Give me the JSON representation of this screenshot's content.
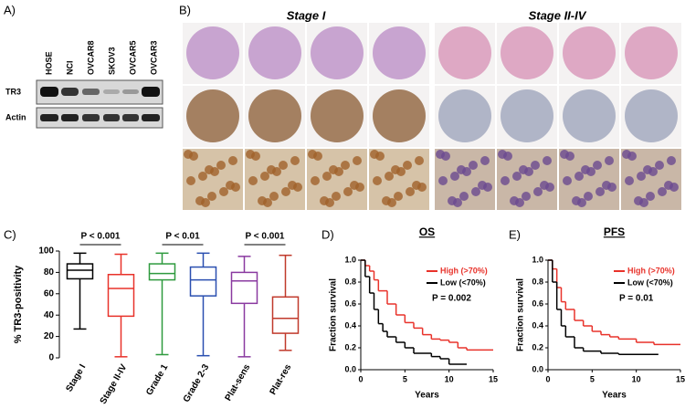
{
  "panels": {
    "a": {
      "label": "A)",
      "lanes": [
        "HOSE",
        "NCI",
        "OVCAR8",
        "SKOV3",
        "OVCAR5",
        "OVCAR3"
      ],
      "rows": [
        "TR3",
        "Actin"
      ]
    },
    "b": {
      "label": "B)",
      "groups": [
        "Stage I",
        "Stage II-IV"
      ]
    }
  },
  "chart_data": [
    {
      "type": "box",
      "label": "C)",
      "ylabel": "% TR3-positivity",
      "categories": [
        "Stage I",
        "Stage II-IV",
        "Grade 1",
        "Grade 2-3",
        "Plat-sens",
        "Plat-res"
      ],
      "colors": [
        "#000000",
        "#e8322a",
        "#2e9a3e",
        "#2a4fb0",
        "#8a3aa0",
        "#c0392b"
      ],
      "min": [
        27,
        1,
        3,
        2,
        1,
        7
      ],
      "q1": [
        74,
        39,
        73,
        58,
        51,
        23
      ],
      "median": [
        82,
        65,
        79,
        73,
        72,
        37
      ],
      "q3": [
        88,
        78,
        88,
        85,
        80,
        57
      ],
      "max": [
        98,
        97,
        98,
        98,
        95,
        96
      ],
      "ylim": [
        0,
        100
      ],
      "yticks": [
        0,
        20,
        40,
        60,
        80,
        100
      ],
      "annotations": [
        "P < 0.001",
        "P < 0.01",
        "P < 0.001"
      ]
    },
    {
      "type": "line",
      "step": true,
      "label": "D)",
      "title": "OS",
      "xlabel": "Years",
      "ylabel": "Fraction survival",
      "annotation": "P = 0.002",
      "xlim": [
        0,
        15
      ],
      "xticks": [
        0,
        5,
        10,
        15
      ],
      "ylim": [
        0,
        1
      ],
      "yticks": [
        {
          "value": 0,
          "label": "0.0"
        },
        0.2,
        0.4,
        0.6,
        0.8,
        {
          "value": 1,
          "label": "1.0"
        }
      ],
      "series": [
        {
          "name": "High (>70%)",
          "color": "#e8322a",
          "x": [
            0,
            0.5,
            1,
            1.5,
            2,
            3,
            4,
            5,
            6,
            7,
            8,
            9,
            10,
            11,
            12,
            15
          ],
          "values": [
            1,
            0.95,
            0.9,
            0.82,
            0.72,
            0.6,
            0.5,
            0.43,
            0.38,
            0.32,
            0.28,
            0.27,
            0.25,
            0.2,
            0.18,
            0.18
          ]
        },
        {
          "name": "Low (<70%)",
          "color": "#000000",
          "x": [
            0,
            0.5,
            1,
            1.5,
            2,
            2.5,
            3,
            4,
            5,
            6,
            8,
            9,
            10,
            12
          ],
          "values": [
            1,
            0.85,
            0.7,
            0.55,
            0.42,
            0.35,
            0.3,
            0.25,
            0.2,
            0.15,
            0.12,
            0.1,
            0.05,
            0.05
          ]
        }
      ]
    },
    {
      "type": "line",
      "step": true,
      "label": "E)",
      "title": "PFS",
      "xlabel": "Years",
      "ylabel": "Fraction survival",
      "annotation": "P = 0.01",
      "xlim": [
        0,
        15
      ],
      "xticks": [
        0,
        5,
        10,
        15
      ],
      "ylim": [
        0,
        1
      ],
      "yticks": [
        {
          "value": 0,
          "label": "0.0"
        },
        0.2,
        0.4,
        0.6,
        0.8,
        {
          "value": 1,
          "label": "1.0"
        }
      ],
      "series": [
        {
          "name": "High (>70%)",
          "color": "#e8322a",
          "x": [
            0,
            0.5,
            1,
            1.5,
            2,
            3,
            4,
            5,
            6,
            7,
            8,
            10,
            12,
            15
          ],
          "values": [
            1,
            0.92,
            0.75,
            0.62,
            0.55,
            0.45,
            0.4,
            0.35,
            0.32,
            0.3,
            0.28,
            0.25,
            0.23,
            0.23
          ]
        },
        {
          "name": "Low (<70%)",
          "color": "#000000",
          "x": [
            0,
            0.5,
            1,
            1.5,
            2,
            3,
            4,
            6,
            8,
            12.5
          ],
          "values": [
            1,
            0.8,
            0.55,
            0.4,
            0.3,
            0.2,
            0.17,
            0.15,
            0.14,
            0.14
          ]
        }
      ]
    }
  ]
}
